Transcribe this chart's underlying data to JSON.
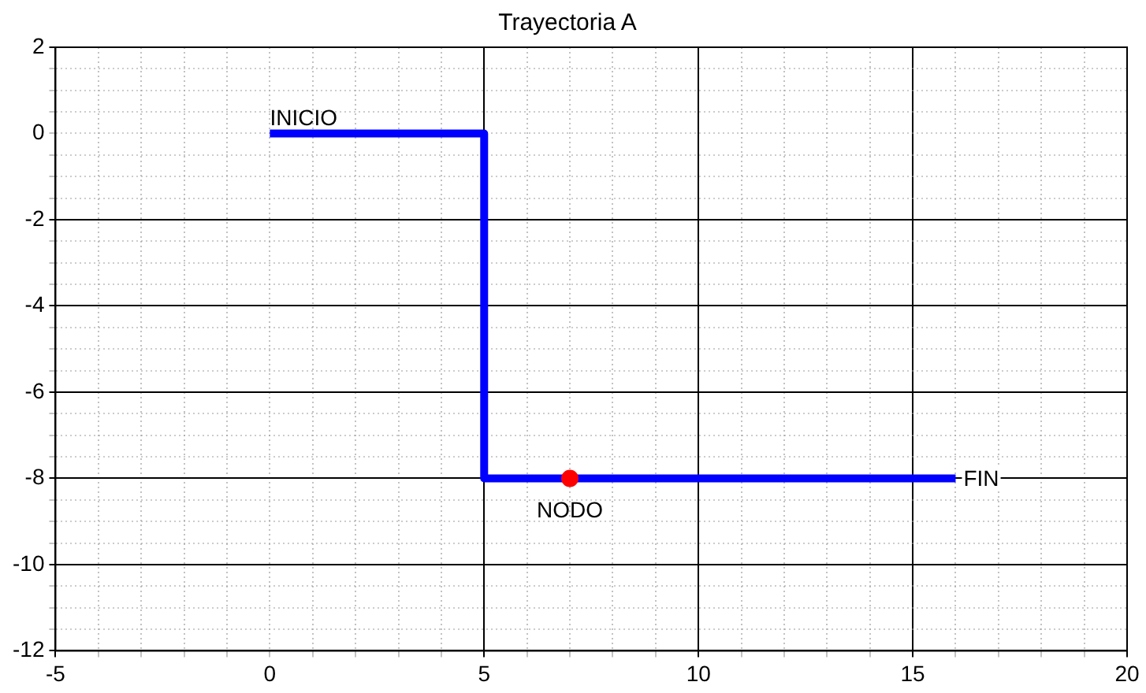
{
  "chart_data": {
    "type": "line",
    "title": "Trayectoria A",
    "series": [
      {
        "type": "line",
        "color": "#0000ff",
        "x": [
          0,
          5,
          5,
          16
        ],
        "values": [
          0,
          0,
          -8,
          -8
        ],
        "marker": "none"
      },
      {
        "type": "scatter",
        "color": "#ff0000",
        "x": [
          7
        ],
        "values": [
          -8
        ],
        "marker": "circle"
      }
    ],
    "xlim": [
      -5,
      20
    ],
    "ylim": [
      -12,
      2
    ],
    "xticks": [
      -5,
      {
        "value": -4,
        "label": null
      },
      {
        "value": -3,
        "label": null
      },
      {
        "value": -2,
        "label": null
      },
      {
        "value": -1,
        "label": null
      },
      0,
      {
        "value": 1,
        "label": null
      },
      {
        "value": 2,
        "label": null
      },
      {
        "value": 3,
        "label": null
      },
      {
        "value": 4,
        "label": null
      },
      5,
      {
        "value": 6,
        "label": null
      },
      {
        "value": 7,
        "label": null
      },
      {
        "value": 8,
        "label": null
      },
      {
        "value": 9,
        "label": null
      },
      10,
      {
        "value": 11,
        "label": null
      },
      {
        "value": 12,
        "label": null
      },
      {
        "value": 13,
        "label": null
      },
      {
        "value": 14,
        "label": null
      },
      15,
      {
        "value": 16,
        "label": null
      },
      {
        "value": 17,
        "label": null
      },
      {
        "value": 18,
        "label": null
      },
      {
        "value": 19,
        "label": null
      },
      20
    ],
    "yticks": [
      -12,
      {
        "value": -11.5,
        "label": null
      },
      {
        "value": -11,
        "label": null
      },
      {
        "value": -10.5,
        "label": null
      },
      -10,
      {
        "value": -9.5,
        "label": null
      },
      {
        "value": -9,
        "label": null
      },
      {
        "value": -8.5,
        "label": null
      },
      -8,
      {
        "value": -7.5,
        "label": null
      },
      {
        "value": -7,
        "label": null
      },
      {
        "value": -6.5,
        "label": null
      },
      -6,
      {
        "value": -5.5,
        "label": null
      },
      {
        "value": -5,
        "label": null
      },
      {
        "value": -4.5,
        "label": null
      },
      -4,
      {
        "value": -3.5,
        "label": null
      },
      {
        "value": -3,
        "label": null
      },
      {
        "value": -2.5,
        "label": null
      },
      -2,
      {
        "value": -1.5,
        "label": null
      },
      {
        "value": -1,
        "label": null
      },
      {
        "value": -0.5,
        "label": null
      },
      0,
      {
        "value": 0.5,
        "label": null
      },
      {
        "value": 1,
        "label": null
      },
      {
        "value": 1.5,
        "label": null
      },
      2
    ],
    "grid": true,
    "legend": false,
    "annotations": [
      {
        "text": "INICIO",
        "x": 0,
        "y": 0
      },
      {
        "text": "NODO",
        "x": 7,
        "y": -8
      },
      {
        "text": "FIN",
        "x": 16,
        "y": -8
      }
    ]
  }
}
